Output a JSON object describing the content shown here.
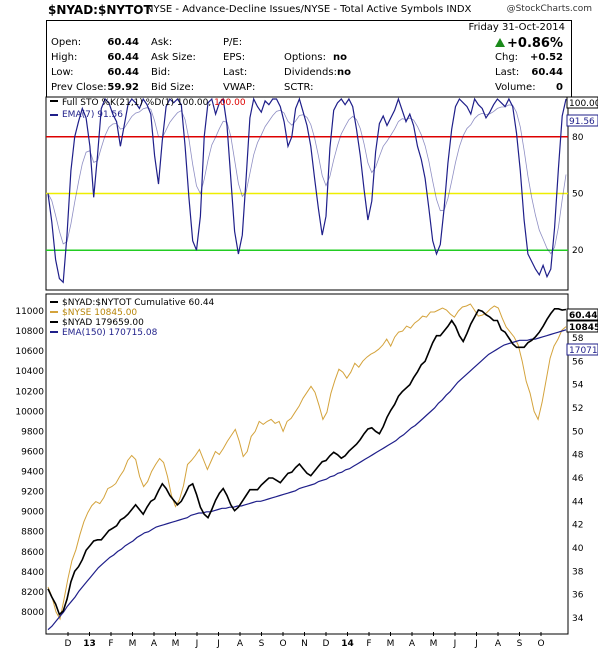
{
  "header": {
    "symbol": "$NYAD:$NYTOT",
    "description": "NYSE - Advance-Decline Issues/NYSE - Total Active Symbols  INDX",
    "brand": "@StockCharts.com"
  },
  "quote": {
    "date": "Friday  31-Oct-2014",
    "change_pct": "+0.86%",
    "fields": [
      {
        "label": "Open:",
        "value": "60.44"
      },
      {
        "label": "High:",
        "value": "60.44"
      },
      {
        "label": "Low:",
        "value": "60.44"
      },
      {
        "label": "Prev Close:",
        "value": "59.92"
      },
      {
        "label": "Ask:",
        "value": ""
      },
      {
        "label": "Ask Size:",
        "value": ""
      },
      {
        "label": "Bid:",
        "value": ""
      },
      {
        "label": "Bid Size:",
        "value": ""
      },
      {
        "label": "P/E:",
        "value": ""
      },
      {
        "label": "EPS:",
        "value": ""
      },
      {
        "label": "Last:",
        "value": ""
      },
      {
        "label": "VWAP:",
        "value": ""
      },
      {
        "label": "Options:",
        "value": "no"
      },
      {
        "label": "Dividends:",
        "value": "no"
      },
      {
        "label": "SCTR:",
        "value": ""
      },
      {
        "label": "Chg:",
        "value": "+0.52"
      },
      {
        "label": "Last:",
        "value": "60.44"
      },
      {
        "label": "Volume:",
        "value": "0"
      }
    ]
  },
  "colors": {
    "sto": "#1f1f8a",
    "ema_sto": "#1f1f8a",
    "nyad": "#000000",
    "nyse": "#d4a33c",
    "ema150": "#1f1f8a",
    "line80": "#dd0000",
    "line50": "#eeee00",
    "line20": "#22cc22"
  },
  "chart_data": [
    {
      "type": "line",
      "legend": [
        {
          "text": "Full STO %K(21,1) %D(1) 100.00, ",
          "extra": "100.00"
        },
        {
          "text": "EMA(7) 91.56",
          "extra": ""
        }
      ],
      "ylim": [
        0,
        100
      ],
      "ticks_right": [
        80,
        50,
        20
      ],
      "reference_lines": [
        80,
        50,
        20
      ],
      "last_labels": [
        "100.00",
        "91.56"
      ],
      "series": [
        {
          "name": "Full STO %K(21,1) %D(1)",
          "values": [
            50,
            35,
            15,
            5,
            3,
            28,
            62,
            80,
            88,
            95,
            90,
            75,
            48,
            70,
            95,
            100,
            98,
            92,
            88,
            75,
            86,
            97,
            100,
            98,
            95,
            100,
            97,
            92,
            70,
            55,
            78,
            96,
            100,
            98,
            100,
            97,
            75,
            48,
            25,
            20,
            38,
            80,
            98,
            100,
            92,
            98,
            100,
            86,
            58,
            30,
            18,
            28,
            58,
            90,
            100,
            96,
            93,
            99,
            97,
            100,
            100,
            96,
            88,
            75,
            80,
            95,
            100,
            93,
            86,
            75,
            58,
            42,
            28,
            38,
            74,
            94,
            98,
            100,
            97,
            100,
            96,
            84,
            70,
            52,
            36,
            46,
            72,
            87,
            91,
            86,
            90,
            94,
            100,
            94,
            88,
            92,
            86,
            75,
            68,
            58,
            42,
            25,
            18,
            23,
            42,
            66,
            84,
            96,
            100,
            98,
            96,
            92,
            100,
            97,
            95,
            90,
            93,
            97,
            100,
            98,
            96,
            100,
            96,
            82,
            62,
            36,
            18,
            14,
            10,
            7,
            12,
            6,
            10,
            32,
            63,
            91,
            100
          ]
        },
        {
          "name": "EMA(7)",
          "values": []
        }
      ],
      "x_labels": [
        "D",
        "13",
        "F",
        "M",
        "A",
        "M",
        "J",
        "J",
        "A",
        "S",
        "O",
        "N",
        "D",
        "14",
        "F",
        "M",
        "A",
        "M",
        "J",
        "J",
        "A",
        "S",
        "O"
      ]
    },
    {
      "type": "line",
      "legend": [
        {
          "text": "$NYAD:$NYTOT Cumulative 60.44"
        },
        {
          "text": "$NYSE 10845.00"
        },
        {
          "text": "$NYAD 179659.00"
        },
        {
          "text": "EMA(150) 170715.08"
        }
      ],
      "y_left": {
        "ticks": [
          8000,
          8200,
          8400,
          8600,
          8800,
          9000,
          9200,
          9400,
          9600,
          9800,
          10000,
          10200,
          10400,
          10600,
          10800,
          11000
        ],
        "range": [
          7800,
          11150
        ]
      },
      "y_right": {
        "ticks": [
          34,
          36,
          38,
          40,
          42,
          44,
          46,
          48,
          50,
          52,
          54,
          56,
          58,
          60
        ],
        "range": [
          32.8,
          61.6
        ]
      },
      "last_labels": [
        "60.44",
        "10845",
        "17071"
      ],
      "series": [
        {
          "name": "$NYAD:$NYTOT Cumulative",
          "axis": "right",
          "values": [
            36.5,
            35.8,
            35.2,
            34.3,
            34.6,
            35.6,
            37.1,
            38.0,
            38.4,
            39.0,
            39.8,
            40.2,
            40.6,
            40.7,
            40.7,
            41.1,
            41.5,
            41.7,
            41.9,
            42.4,
            42.6,
            42.9,
            43.3,
            43.7,
            43.3,
            42.9,
            43.5,
            44.0,
            44.2,
            44.9,
            45.5,
            45.1,
            44.5,
            44.1,
            43.7,
            44.0,
            44.6,
            45.3,
            45.5,
            44.6,
            43.5,
            42.9,
            42.6,
            43.3,
            44.1,
            44.7,
            45.1,
            44.5,
            43.7,
            43.2,
            43.5,
            44.0,
            44.5,
            45.0,
            45.0,
            45.0,
            45.4,
            45.7,
            46.0,
            46.0,
            45.8,
            45.6,
            46.0,
            46.4,
            46.5,
            46.9,
            47.2,
            46.8,
            46.4,
            46.2,
            46.6,
            47.0,
            47.4,
            47.5,
            47.9,
            48.2,
            48.0,
            47.7,
            47.9,
            48.3,
            48.6,
            48.9,
            49.3,
            49.8,
            50.2,
            50.3,
            50.0,
            49.8,
            50.4,
            51.2,
            51.8,
            52.3,
            53.0,
            53.4,
            53.7,
            54.0,
            54.6,
            55.1,
            55.7,
            56.0,
            56.8,
            57.6,
            58.2,
            58.2,
            58.6,
            59.0,
            59.5,
            59.0,
            58.2,
            57.7,
            58.4,
            59.2,
            59.8,
            60.4,
            60.3,
            60.0,
            59.8,
            59.5,
            59.5,
            58.7,
            58.5,
            58.0,
            57.5,
            57.2,
            57.2,
            57.2,
            57.6,
            57.8,
            58.1,
            58.5,
            59.0,
            59.6,
            60.1,
            60.5,
            60.5,
            60.4,
            60.44
          ]
        },
        {
          "name": "$NYSE",
          "axis": "left",
          "values": [
            8250,
            8150,
            8000,
            7930,
            8120,
            8330,
            8510,
            8620,
            8770,
            8900,
            8990,
            9060,
            9100,
            9080,
            9140,
            9230,
            9250,
            9280,
            9350,
            9410,
            9510,
            9560,
            9520,
            9350,
            9250,
            9300,
            9400,
            9470,
            9530,
            9490,
            9350,
            9160,
            9050,
            9120,
            9260,
            9470,
            9510,
            9560,
            9620,
            9520,
            9420,
            9510,
            9600,
            9570,
            9630,
            9700,
            9760,
            9820,
            9700,
            9550,
            9600,
            9750,
            9800,
            9900,
            9870,
            9900,
            9920,
            9880,
            9900,
            9800,
            9900,
            9930,
            9990,
            10050,
            10130,
            10190,
            10250,
            10190,
            10060,
            9920,
            9990,
            10180,
            10310,
            10420,
            10390,
            10330,
            10390,
            10480,
            10440,
            10500,
            10540,
            10570,
            10590,
            10620,
            10660,
            10720,
            10650,
            10740,
            10790,
            10800,
            10850,
            10830,
            10880,
            10910,
            10950,
            10940,
            10990,
            10990,
            11010,
            11030,
            11010,
            10970,
            10940,
            11000,
            11040,
            11050,
            11070,
            11010,
            10950,
            10960,
            10980,
            11020,
            11050,
            11030,
            10930,
            10840,
            10790,
            10740,
            10660,
            10500,
            10300,
            10180,
            10000,
            9920,
            10090,
            10310,
            10530,
            10650,
            10720,
            10810,
            10845
          ]
        },
        {
          "name": "EMA(150)",
          "axis": "right",
          "values": [
            33.0,
            33.3,
            33.7,
            34.1,
            34.5,
            35.0,
            35.4,
            35.8,
            36.3,
            36.7,
            37.1,
            37.5,
            37.9,
            38.3,
            38.6,
            38.9,
            39.2,
            39.4,
            39.7,
            39.9,
            40.2,
            40.4,
            40.6,
            40.9,
            41.1,
            41.3,
            41.4,
            41.6,
            41.8,
            41.9,
            42.0,
            42.1,
            42.2,
            42.3,
            42.4,
            42.5,
            42.6,
            42.8,
            42.9,
            43.0,
            43.0,
            43.1,
            43.1,
            43.2,
            43.3,
            43.4,
            43.4,
            43.5,
            43.5,
            43.6,
            43.6,
            43.7,
            43.8,
            43.9,
            44.0,
            44.0,
            44.1,
            44.2,
            44.3,
            44.4,
            44.5,
            44.6,
            44.7,
            44.8,
            44.9,
            45.1,
            45.2,
            45.3,
            45.4,
            45.5,
            45.7,
            45.8,
            45.9,
            46.1,
            46.2,
            46.4,
            46.5,
            46.7,
            46.8,
            47.0,
            47.2,
            47.4,
            47.6,
            47.8,
            48.0,
            48.2,
            48.4,
            48.6,
            48.8,
            49.0,
            49.2,
            49.5,
            49.7,
            50.0,
            50.3,
            50.5,
            50.8,
            51.1,
            51.4,
            51.7,
            52.0,
            52.4,
            52.7,
            53.1,
            53.4,
            53.8,
            54.2,
            54.5,
            54.8,
            55.1,
            55.4,
            55.7,
            56.0,
            56.3,
            56.6,
            56.8,
            57.0,
            57.2,
            57.4,
            57.5,
            57.6,
            57.7,
            57.8,
            57.8,
            57.8,
            57.9,
            57.9,
            58.0,
            58.1,
            58.2,
            58.3,
            58.4,
            58.5,
            58.6,
            58.7
          ]
        }
      ],
      "x_labels": [
        "D",
        "13",
        "F",
        "M",
        "A",
        "M",
        "J",
        "J",
        "A",
        "S",
        "O",
        "N",
        "D",
        "14",
        "F",
        "M",
        "A",
        "M",
        "J",
        "J",
        "A",
        "S",
        "O"
      ]
    }
  ]
}
